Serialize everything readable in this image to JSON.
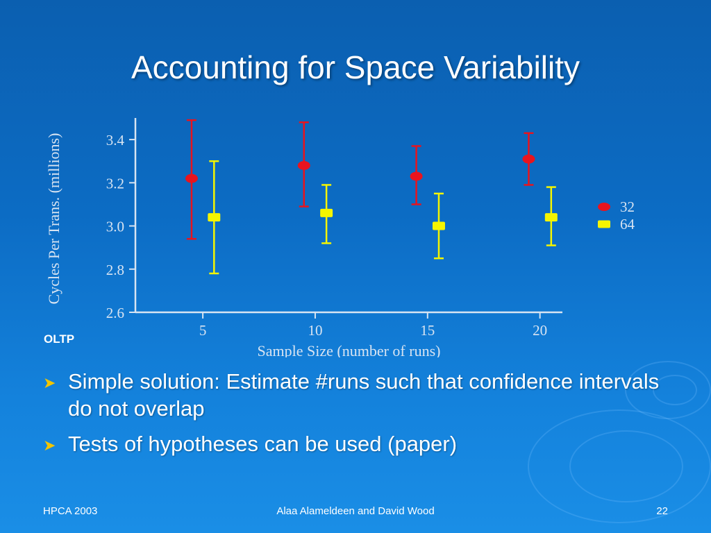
{
  "slide": {
    "title": "Accounting for Space Variability",
    "panel_label": "OLTP",
    "bullets": [
      "Simple solution: Estimate #runs such that confidence intervals do not overlap",
      "Tests of hypotheses can be used (paper)"
    ],
    "footer": {
      "left": "HPCA 2003",
      "center": "Alaa Alameldeen and David Wood",
      "right": "22"
    }
  },
  "chart_data": {
    "type": "scatter",
    "xlabel": "Sample Size (number of runs)",
    "ylabel": "Cycles Per Trans. (millions)",
    "xlim": [
      2,
      21
    ],
    "ylim": [
      2.6,
      3.5
    ],
    "x_ticks": [
      "5",
      "10",
      "15",
      "20"
    ],
    "y_ticks": [
      "2.6",
      "2.8",
      "3.0",
      "3.2",
      "3.4"
    ],
    "legend_position": "right",
    "series": [
      {
        "name": "32",
        "color": "#e8141e",
        "marker": "circle",
        "points": [
          {
            "x": 4.5,
            "y": 3.22,
            "lo": 2.94,
            "hi": 3.49
          },
          {
            "x": 9.5,
            "y": 3.28,
            "lo": 3.09,
            "hi": 3.48
          },
          {
            "x": 14.5,
            "y": 3.23,
            "lo": 3.1,
            "hi": 3.37
          },
          {
            "x": 19.5,
            "y": 3.31,
            "lo": 3.19,
            "hi": 3.43
          }
        ]
      },
      {
        "name": "64",
        "color": "#f5f500",
        "marker": "square",
        "points": [
          {
            "x": 5.5,
            "y": 3.04,
            "lo": 2.78,
            "hi": 3.3
          },
          {
            "x": 10.5,
            "y": 3.06,
            "lo": 2.92,
            "hi": 3.19
          },
          {
            "x": 15.5,
            "y": 3.0,
            "lo": 2.85,
            "hi": 3.15
          },
          {
            "x": 20.5,
            "y": 3.04,
            "lo": 2.91,
            "hi": 3.18
          }
        ]
      }
    ]
  }
}
